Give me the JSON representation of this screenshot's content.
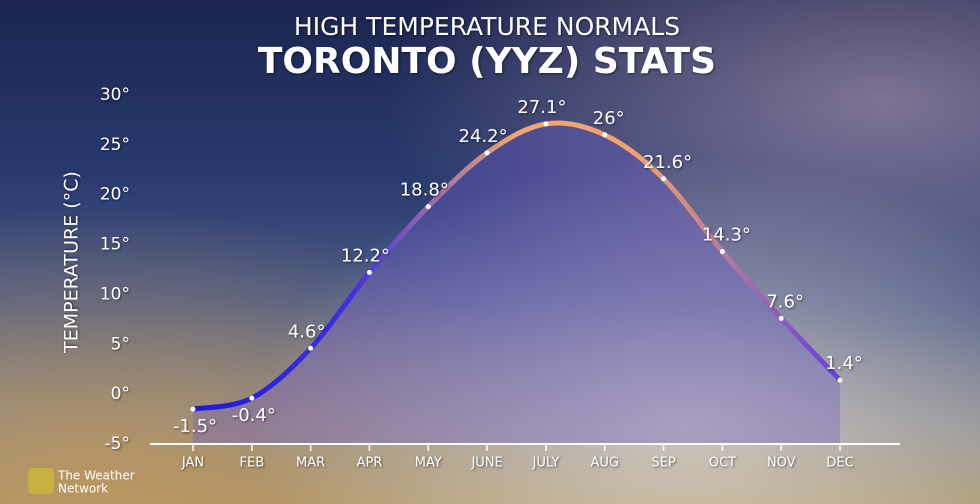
{
  "chart_data": {
    "type": "area-line",
    "title": "HIGH TEMPERATURE NORMALS",
    "subtitle": "TORONTO (YYZ) STATS",
    "y_label": "TEMPERATURE (°C)",
    "brand": [
      "The Weather",
      "Network"
    ],
    "categories": [
      "JAN",
      "FEB",
      "MAR",
      "APR",
      "MAY",
      "JUNE",
      "JULY",
      "AUG",
      "SEP",
      "OCT",
      "NOV",
      "DEC"
    ],
    "values": [
      -1.5,
      -0.4,
      4.6,
      12.2,
      18.8,
      24.2,
      27.1,
      26,
      21.6,
      14.3,
      7.6,
      1.4
    ],
    "value_labels": [
      "-1.5°",
      "-0.4°",
      "4.6°",
      "12.2°",
      "18.8°",
      "24.2°",
      "27.1°",
      "26°",
      "21.6°",
      "14.3°",
      "7.6°",
      "1.4°"
    ],
    "ylim": [
      -5,
      30
    ],
    "yticks": [
      {
        "value": -5,
        "label": "-5°"
      },
      {
        "value": 0,
        "label": "0°"
      },
      {
        "value": 5,
        "label": "5°"
      },
      {
        "value": 10,
        "label": "10°"
      },
      {
        "value": 15,
        "label": "15°"
      },
      {
        "value": 20,
        "label": "20°"
      },
      {
        "value": 25,
        "label": "25°"
      },
      {
        "value": 30,
        "label": "30°"
      }
    ]
  }
}
